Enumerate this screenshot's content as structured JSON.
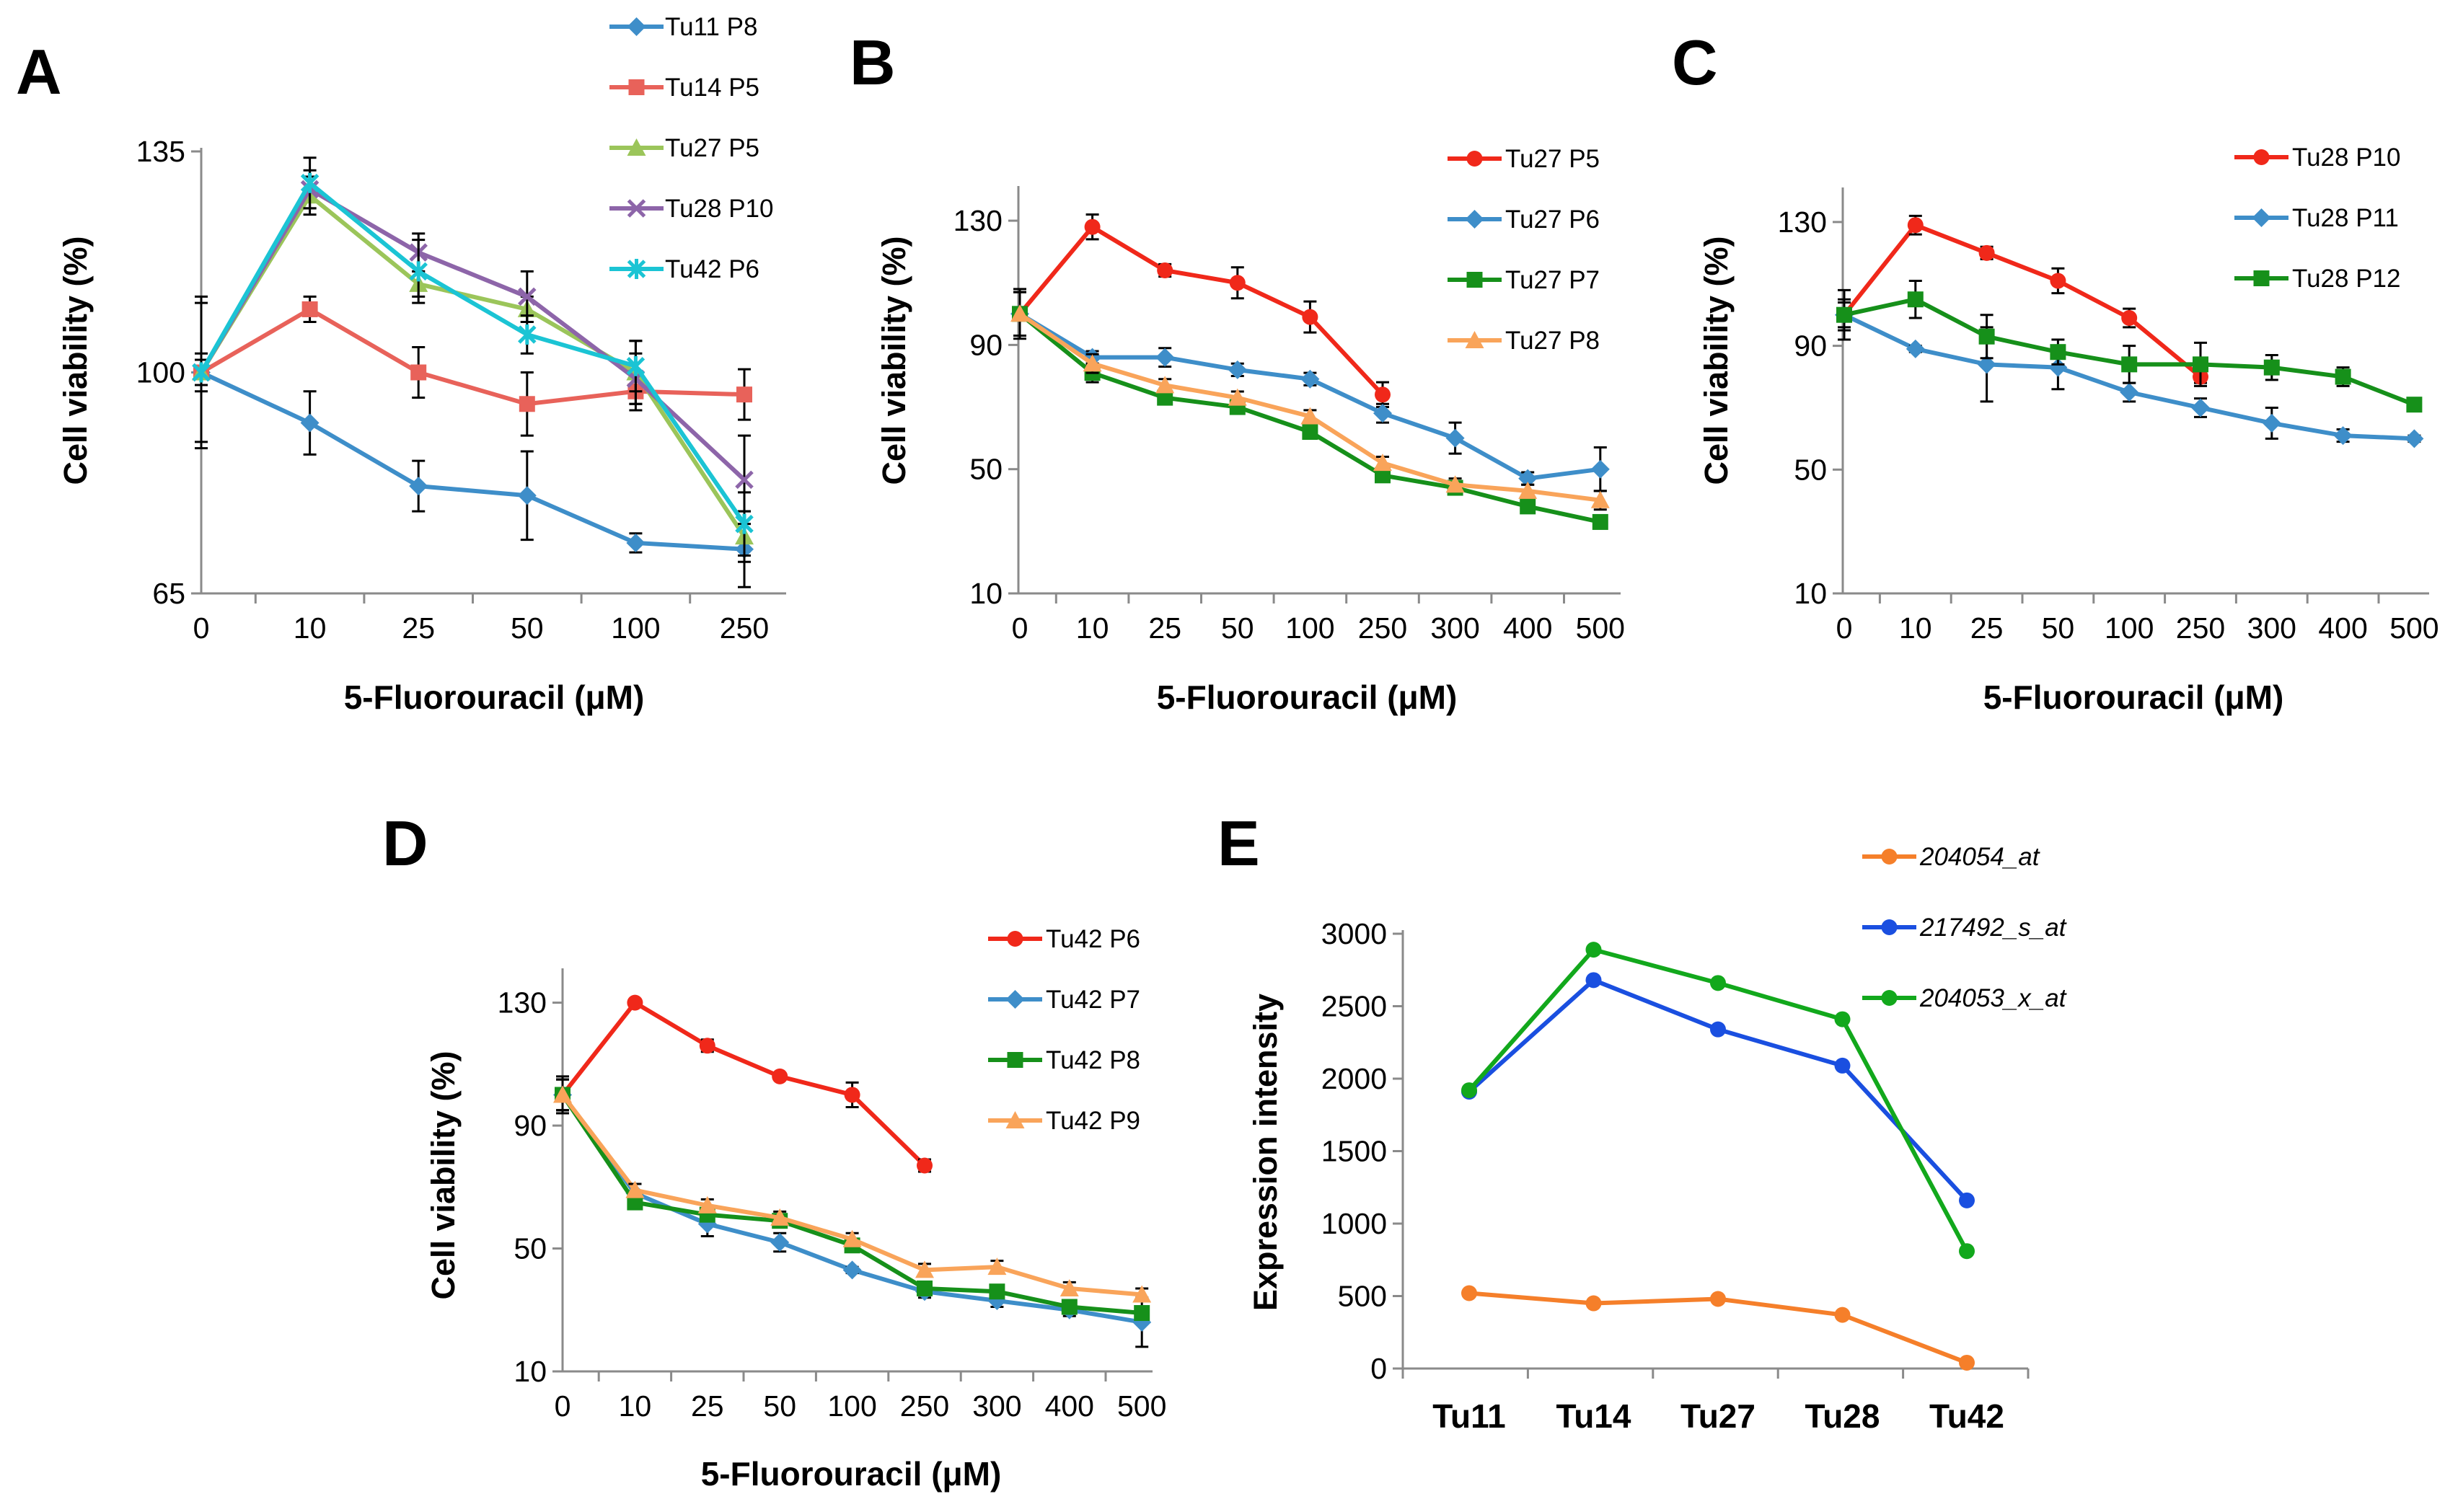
{
  "chart_data": [
    {
      "id": "A",
      "type": "line",
      "panel_label": "A",
      "categories": [
        "0",
        "10",
        "25",
        "50",
        "100",
        "250"
      ],
      "xlabel": "5-Fluorouracil (μM)",
      "ylabel": "Cell viability (%)",
      "ylim": [
        65,
        135
      ],
      "yticks": [
        65,
        100,
        135
      ],
      "legend_position": "top-right",
      "series": [
        {
          "name": "Tu11 P8",
          "color": "#3E8EC9",
          "marker": "diamond",
          "values": [
            100,
            92,
            82,
            80.5,
            73,
            72
          ],
          "errors": [
            12,
            5,
            4,
            7,
            1.5,
            6
          ]
        },
        {
          "name": "Tu14 P5",
          "color": "#E8625A",
          "marker": "square",
          "values": [
            100,
            110,
            100,
            95,
            97,
            96.5
          ],
          "errors": [
            11,
            2,
            4,
            5,
            3,
            4
          ]
        },
        {
          "name": "Tu27 P5",
          "color": "#9BC55A",
          "marker": "triangle",
          "values": [
            100,
            128,
            114,
            110,
            100,
            74
          ],
          "errors": [
            2,
            3,
            2,
            2,
            5,
            4
          ]
        },
        {
          "name": "Tu28 P10",
          "color": "#8D65A9",
          "marker": "x",
          "values": [
            100,
            129,
            119,
            112,
            99,
            83
          ],
          "errors": [
            2,
            3,
            3,
            4,
            4,
            7
          ]
        },
        {
          "name": "Tu42 P6",
          "color": "#1BC4D4",
          "marker": "star",
          "values": [
            100,
            130,
            116,
            106,
            101,
            76
          ],
          "errors": [
            3,
            4,
            5,
            3,
            4,
            5
          ]
        }
      ]
    },
    {
      "id": "B",
      "type": "line",
      "panel_label": "B",
      "categories": [
        "0",
        "10",
        "25",
        "50",
        "100",
        "250",
        "300",
        "400",
        "500"
      ],
      "xlabel": "5-Fluorouracil (μM)",
      "ylabel": "Cell viability (%)",
      "ylim": [
        10,
        140
      ],
      "yticks": [
        10,
        50,
        90,
        130
      ],
      "legend_position": "top-right",
      "series": [
        {
          "name": "Tu27 P5",
          "color": "#F0281A",
          "marker": "circle",
          "values": [
            100,
            128,
            114,
            110,
            99,
            74,
            null,
            null,
            null
          ],
          "errors": [
            8,
            4,
            2,
            5,
            5,
            4,
            null,
            null,
            null
          ]
        },
        {
          "name": "Tu27 P6",
          "color": "#3E8EC9",
          "marker": "diamond",
          "values": [
            100,
            86,
            86,
            82,
            79,
            68,
            60,
            47,
            50
          ],
          "errors": [
            7,
            2,
            3,
            2,
            2,
            3,
            5,
            2,
            7
          ]
        },
        {
          "name": "Tu27 P7",
          "color": "#16901A",
          "marker": "square",
          "values": [
            100,
            81,
            73,
            70,
            62,
            48,
            44,
            38,
            33
          ],
          "errors": [
            7,
            3,
            2,
            2,
            2,
            2,
            2,
            2,
            2
          ]
        },
        {
          "name": "Tu27 P8",
          "color": "#F9A45A",
          "marker": "triangle",
          "values": [
            100,
            84,
            77,
            73,
            67,
            52,
            45,
            43,
            40
          ],
          "errors": [
            7,
            3,
            2,
            2,
            2,
            2,
            2,
            2,
            3
          ]
        }
      ]
    },
    {
      "id": "C",
      "type": "line",
      "panel_label": "C",
      "categories": [
        "0",
        "10",
        "25",
        "50",
        "100",
        "250",
        "300",
        "400",
        "500"
      ],
      "xlabel": "5-Fluorouracil (μM)",
      "ylabel": "Cell viability (%)",
      "ylim": [
        10,
        140
      ],
      "yticks": [
        10,
        50,
        90,
        130
      ],
      "legend_position": "top-right",
      "series": [
        {
          "name": "Tu28 P10",
          "color": "#F0281A",
          "marker": "circle",
          "values": [
            100,
            129,
            120,
            111,
            99,
            80,
            null,
            null,
            null
          ],
          "errors": [
            4,
            3,
            2,
            4,
            3,
            2,
            null,
            null,
            null
          ]
        },
        {
          "name": "Tu28 P11",
          "color": "#3E8EC9",
          "marker": "diamond",
          "values": [
            100,
            89,
            84,
            83,
            75,
            70,
            65,
            61,
            60
          ],
          "errors": [
            5,
            1,
            12,
            7,
            3,
            3,
            5,
            2,
            1
          ]
        },
        {
          "name": "Tu28 P12",
          "color": "#16901A",
          "marker": "square",
          "values": [
            100,
            105,
            93,
            88,
            84,
            84,
            83,
            80,
            71
          ],
          "errors": [
            8,
            6,
            7,
            4,
            6,
            7,
            4,
            3,
            2
          ]
        }
      ]
    },
    {
      "id": "D",
      "type": "line",
      "panel_label": "D",
      "categories": [
        "0",
        "10",
        "25",
        "50",
        "100",
        "250",
        "300",
        "400",
        "500"
      ],
      "xlabel": "5-Fluorouracil (μM)",
      "ylabel": "Cell viability (%)",
      "ylim": [
        10,
        140
      ],
      "yticks": [
        10,
        50,
        90,
        130
      ],
      "legend_position": "top-right",
      "series": [
        {
          "name": "Tu42 P6",
          "color": "#F0281A",
          "marker": "circle",
          "values": [
            100,
            130,
            116,
            106,
            100,
            77,
            null,
            null,
            null
          ],
          "errors": [
            6,
            1,
            2,
            1,
            4,
            2,
            null,
            null,
            null
          ]
        },
        {
          "name": "Tu42 P7",
          "color": "#3E8EC9",
          "marker": "diamond",
          "values": [
            100,
            68,
            58,
            52,
            43,
            36,
            33,
            30,
            26
          ],
          "errors": [
            5,
            3,
            4,
            3,
            1,
            2,
            2,
            2,
            8
          ]
        },
        {
          "name": "Tu42 P8",
          "color": "#16901A",
          "marker": "square",
          "values": [
            100,
            65,
            61,
            59,
            51,
            37,
            36,
            31,
            29
          ],
          "errors": [
            5,
            2,
            2,
            2,
            2,
            2,
            2,
            2,
            2
          ]
        },
        {
          "name": "Tu42 P9",
          "color": "#F9A45A",
          "marker": "triangle",
          "values": [
            100,
            69,
            64,
            60,
            53,
            43,
            44,
            37,
            35
          ],
          "errors": [
            5,
            2,
            2,
            2,
            2,
            2,
            2,
            2,
            2
          ]
        }
      ]
    },
    {
      "id": "E",
      "type": "line",
      "panel_label": "E",
      "categories": [
        "Tu11",
        "Tu14",
        "Tu27",
        "Tu28",
        "Tu42"
      ],
      "xlabel": "",
      "ylabel": "Expression intensity",
      "ylim": [
        0,
        3000
      ],
      "yticks": [
        0,
        500,
        1000,
        1500,
        2000,
        2500,
        3000
      ],
      "legend_position": "top-right",
      "legend_italic": true,
      "series": [
        {
          "name": "204054_at",
          "color": "#F57F2A",
          "marker": "circle",
          "values": [
            520,
            450,
            480,
            370,
            40
          ]
        },
        {
          "name": "217492_s_at",
          "color": "#1A4FE0",
          "marker": "circle",
          "values": [
            1910,
            2680,
            2340,
            2090,
            1160
          ]
        },
        {
          "name": "204053_x_at",
          "color": "#12A81C",
          "marker": "circle",
          "values": [
            1920,
            2890,
            2660,
            2410,
            810
          ]
        }
      ]
    }
  ]
}
